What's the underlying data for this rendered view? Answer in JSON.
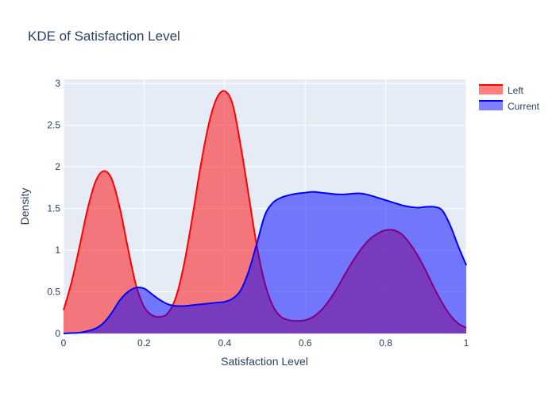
{
  "chart_data": {
    "type": "area",
    "title": "KDE of Satisfaction Level",
    "xlabel": "Satisfaction Level",
    "ylabel": "Density",
    "xlim": [
      0,
      1
    ],
    "ylim": [
      0,
      3.05
    ],
    "xticks": [
      0,
      0.2,
      0.4,
      0.6,
      0.8,
      1
    ],
    "xtick_labels": [
      "0",
      "0.2",
      "0.4",
      "0.6",
      "0.8",
      "1"
    ],
    "yticks": [
      0,
      0.5,
      1,
      1.5,
      2,
      2.5,
      3
    ],
    "ytick_labels": [
      "0",
      "0.5",
      "1",
      "1.5",
      "2",
      "2.5",
      "3"
    ],
    "grid": true,
    "legend_position": "top-right",
    "plot_background": "#e5ecf6",
    "series": [
      {
        "name": "Left",
        "color": "#ff0000",
        "fill": "rgba(255,0,0,0.5)",
        "x": [
          0,
          0.02,
          0.04,
          0.06,
          0.08,
          0.1,
          0.12,
          0.14,
          0.16,
          0.18,
          0.2,
          0.22,
          0.24,
          0.26,
          0.28,
          0.3,
          0.32,
          0.34,
          0.36,
          0.38,
          0.4,
          0.42,
          0.44,
          0.46,
          0.48,
          0.5,
          0.52,
          0.54,
          0.56,
          0.58,
          0.6,
          0.62,
          0.64,
          0.66,
          0.68,
          0.7,
          0.72,
          0.74,
          0.76,
          0.78,
          0.8,
          0.82,
          0.84,
          0.86,
          0.88,
          0.9,
          0.92,
          0.94,
          0.96,
          0.98,
          1
        ],
        "y": [
          0.28,
          0.62,
          1.05,
          1.5,
          1.83,
          1.95,
          1.85,
          1.5,
          1.02,
          0.58,
          0.32,
          0.22,
          0.2,
          0.25,
          0.45,
          0.85,
          1.4,
          2.0,
          2.5,
          2.82,
          2.91,
          2.75,
          2.25,
          1.65,
          1.05,
          0.6,
          0.33,
          0.2,
          0.16,
          0.15,
          0.16,
          0.2,
          0.28,
          0.4,
          0.55,
          0.72,
          0.88,
          1.02,
          1.13,
          1.2,
          1.24,
          1.24,
          1.19,
          1.08,
          0.93,
          0.75,
          0.55,
          0.37,
          0.22,
          0.12,
          0.07
        ]
      },
      {
        "name": "Current",
        "color": "#0000ff",
        "fill": "rgba(0,0,255,0.5)",
        "x": [
          0,
          0.02,
          0.04,
          0.06,
          0.08,
          0.1,
          0.12,
          0.14,
          0.16,
          0.18,
          0.2,
          0.22,
          0.24,
          0.26,
          0.28,
          0.3,
          0.32,
          0.34,
          0.36,
          0.38,
          0.4,
          0.42,
          0.44,
          0.46,
          0.48,
          0.5,
          0.52,
          0.54,
          0.56,
          0.58,
          0.6,
          0.62,
          0.64,
          0.66,
          0.68,
          0.7,
          0.72,
          0.74,
          0.76,
          0.78,
          0.8,
          0.82,
          0.84,
          0.86,
          0.88,
          0.9,
          0.92,
          0.94,
          0.96,
          0.98,
          1
        ],
        "y": [
          0.0,
          0.005,
          0.01,
          0.03,
          0.06,
          0.13,
          0.25,
          0.4,
          0.5,
          0.55,
          0.54,
          0.47,
          0.4,
          0.35,
          0.33,
          0.33,
          0.34,
          0.35,
          0.36,
          0.37,
          0.38,
          0.42,
          0.52,
          0.75,
          1.08,
          1.42,
          1.57,
          1.63,
          1.66,
          1.68,
          1.69,
          1.7,
          1.69,
          1.68,
          1.67,
          1.67,
          1.68,
          1.68,
          1.66,
          1.63,
          1.6,
          1.57,
          1.54,
          1.52,
          1.51,
          1.52,
          1.52,
          1.48,
          1.3,
          1.05,
          0.82
        ]
      }
    ]
  }
}
